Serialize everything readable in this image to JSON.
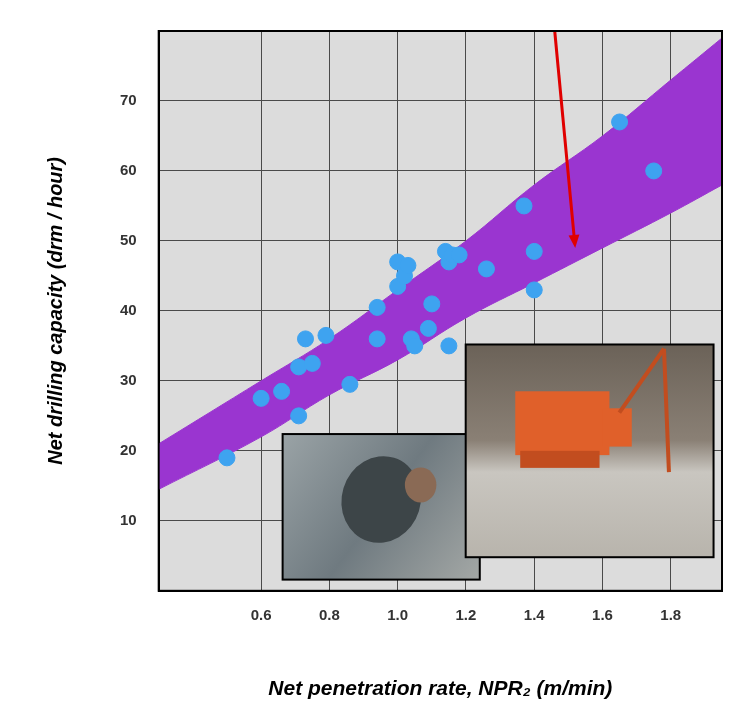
{
  "chart_data": {
    "type": "scatter",
    "x_label": "Net penetration rate, NPR₂ (m/min)",
    "y_label": "Net drilling capacity (drm / hour)",
    "xlim": [
      0.3,
      1.95
    ],
    "ylim": [
      0,
      80
    ],
    "xticks": [
      0.6,
      0.8,
      {
        "value": 1,
        "label": "1.0"
      },
      1.2,
      1.4,
      1.6,
      1.8
    ],
    "yticks": [
      10,
      20,
      30,
      40,
      50,
      60,
      70
    ],
    "grid": true,
    "x": [
      0.5,
      0.6,
      0.66,
      0.71,
      0.71,
      0.73,
      0.75,
      0.79,
      0.86,
      0.94,
      0.94,
      1.0,
      1.0,
      1.02,
      1.03,
      1.04,
      1.05,
      1.09,
      1.1,
      1.14,
      1.15,
      1.15,
      1.16,
      1.18,
      1.26,
      1.37,
      1.4,
      1.4,
      1.65,
      1.75
    ],
    "values": [
      19,
      27.5,
      28.5,
      25,
      32,
      36,
      32.5,
      36.5,
      29.5,
      40.5,
      36,
      47,
      43.5,
      45,
      46.5,
      36,
      35,
      37.5,
      41,
      48.5,
      47,
      35,
      48,
      48,
      46,
      55,
      48.5,
      43,
      67,
      60
    ],
    "color": "#3ea3f0",
    "marker": "circle",
    "band": {
      "x": [
        0.3,
        0.6,
        0.8,
        1.0,
        1.2,
        1.4,
        1.6,
        1.8,
        1.95
      ],
      "lower": [
        14.5,
        22,
        28,
        33,
        39,
        44,
        49,
        54,
        58
      ],
      "upper": [
        21,
        30,
        36,
        43,
        50,
        58,
        65,
        73,
        79
      ],
      "color": "#9a35d0"
    },
    "arrow": {
      "x": [
        1.46,
        1.52
      ],
      "y": [
        80,
        49
      ],
      "color": "#e00000"
    }
  }
}
